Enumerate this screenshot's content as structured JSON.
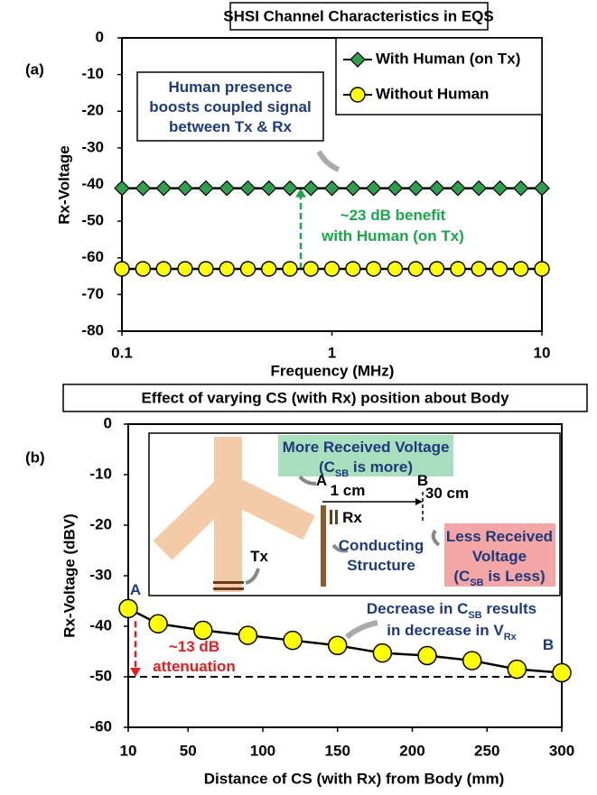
{
  "chart_data": [
    {
      "type": "line",
      "panel": "(a)",
      "title": "SHSI Channel Characteristics in EQS",
      "x_label": "Frequency (MHz)",
      "y_label": "Rx-Voltage",
      "xscale": "log",
      "x": [
        0.1,
        0.126,
        0.158,
        0.2,
        0.251,
        0.316,
        0.398,
        0.501,
        0.631,
        0.794,
        1,
        1.26,
        1.58,
        2,
        2.51,
        3.16,
        3.98,
        5.01,
        6.31,
        7.94,
        10
      ],
      "series": [
        {
          "name": "With Human (on Tx)",
          "color": "#2e9e4f",
          "marker": "diamond",
          "values": [
            -41,
            -41,
            -41,
            -41,
            -41,
            -41,
            -41,
            -41,
            -41,
            -41,
            -41,
            -41,
            -41,
            -41,
            -41,
            -41,
            -41,
            -41,
            -41,
            -41,
            -41
          ]
        },
        {
          "name": "Without Human",
          "color": "#ffff00",
          "marker": "circle",
          "values": [
            -63,
            -63,
            -63,
            -63,
            -63,
            -63,
            -63,
            -63,
            -63,
            -63,
            -63,
            -63,
            -63,
            -63,
            -63,
            -63,
            -63,
            -63,
            -63,
            -63,
            -63
          ]
        }
      ],
      "xlim": [
        0.1,
        10
      ],
      "xticks": [
        0.1,
        1,
        10
      ],
      "ylim": [
        -80,
        0
      ],
      "yticks": [
        0,
        -10,
        -20,
        -30,
        -40,
        -50,
        -60,
        -70,
        -80
      ],
      "legend": "upper right",
      "annotations": [
        {
          "lines": [
            [
              "Human presence"
            ],
            [
              "boosts coupled signal"
            ],
            [
              "between Tx & Rx"
            ]
          ]
        },
        {
          "lines": [
            [
              "~23 dB benefit"
            ],
            [
              "with Human (on Tx)"
            ]
          ]
        }
      ]
    },
    {
      "type": "line",
      "panel": "(b)",
      "title": "Effect of varying CS (with Rx) position about Body",
      "x_label": "Distance of CS (with Rx) from Body (mm)",
      "y_label": "Rx-Voltage (dBV)",
      "xscale": "linear",
      "x": [
        10,
        30,
        60,
        90,
        120,
        150,
        180,
        210,
        240,
        270,
        300
      ],
      "series": [
        {
          "name": null,
          "color": "#ffff00",
          "marker": "circle",
          "values": [
            -36.5,
            -39.5,
            -40.8,
            -41.8,
            -42.8,
            -43.8,
            -45.3,
            -45.8,
            -46.8,
            -48.5,
            -49.2
          ]
        }
      ],
      "xlim": [
        10,
        300
      ],
      "xticks": [
        10,
        50,
        100,
        150,
        200,
        250,
        300
      ],
      "ylim": [
        -60,
        0
      ],
      "yticks": [
        0,
        -10,
        -20,
        -30,
        -40,
        -50,
        -60
      ],
      "reference_line": -50,
      "annotations": [
        {
          "lines": [
            [
              "More Received Voltage"
            ],
            [
              "(C",
              "SB",
              " is more)"
            ]
          ]
        },
        {
          "lines": [
            [
              "A"
            ]
          ]
        },
        {
          "lines": [
            [
              "1 cm"
            ]
          ]
        },
        {
          "lines": [
            [
              "B"
            ]
          ]
        },
        {
          "lines": [
            [
              "30 cm"
            ]
          ]
        },
        {
          "lines": [
            [
              "Rx"
            ]
          ]
        },
        {
          "lines": [
            [
              "Tx"
            ]
          ]
        },
        {
          "lines": [
            [
              "Conducting"
            ],
            [
              "Structure"
            ]
          ]
        },
        {
          "lines": [
            [
              "Less Received"
            ],
            [
              "Voltage"
            ],
            [
              "(C",
              "SB",
              " is Less)"
            ]
          ]
        },
        {
          "lines": [
            [
              "Decrease in C",
              "SB",
              " results"
            ],
            [
              "in decrease in V",
              "Rx",
              ""
            ]
          ]
        },
        {
          "lines": [
            [
              "~13 dB"
            ],
            [
              "attenuation"
            ]
          ]
        },
        {
          "lines": [
            [
              "A"
            ]
          ]
        },
        {
          "lines": [
            [
              "B"
            ]
          ]
        }
      ]
    }
  ]
}
